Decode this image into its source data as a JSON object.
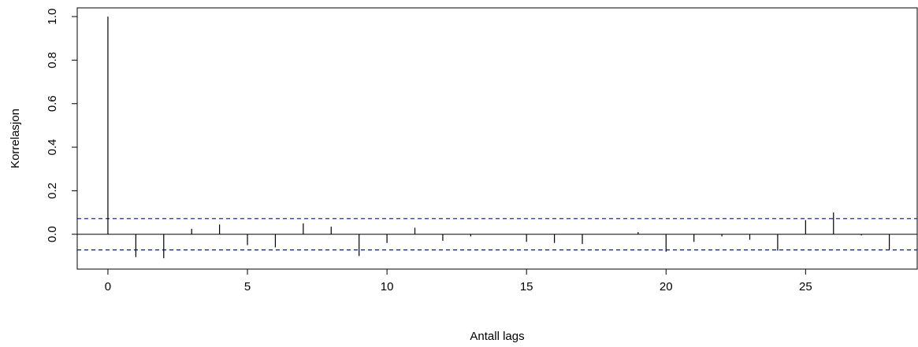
{
  "chart_data": {
    "type": "bar",
    "subtype": "acf-stem",
    "xlabel": "Antall lags",
    "ylabel": "Korrelasjon",
    "xlim": [
      -1.1,
      29
    ],
    "ylim": [
      -0.16,
      1.04
    ],
    "x_ticks": [
      0,
      5,
      10,
      15,
      20,
      25
    ],
    "x_tick_labels": [
      "0",
      "5",
      "10",
      "15",
      "20",
      "25"
    ],
    "y_ticks": [
      0.0,
      0.2,
      0.4,
      0.6,
      0.8,
      1.0
    ],
    "y_tick_labels": [
      "0.0",
      "0.2",
      "0.4",
      "0.6",
      "0.8",
      "1.0"
    ],
    "lags": [
      0,
      1,
      2,
      3,
      4,
      5,
      6,
      7,
      8,
      9,
      10,
      11,
      12,
      13,
      14,
      15,
      16,
      17,
      18,
      19,
      20,
      21,
      22,
      23,
      24,
      25,
      26,
      27,
      28
    ],
    "values": [
      1.0,
      -0.105,
      -0.11,
      0.025,
      0.045,
      -0.05,
      -0.06,
      0.05,
      0.035,
      -0.1,
      -0.04,
      0.03,
      -0.03,
      -0.01,
      0.0,
      -0.035,
      -0.04,
      -0.045,
      0.0,
      0.01,
      -0.08,
      -0.035,
      -0.01,
      -0.025,
      -0.075,
      0.065,
      0.1,
      -0.005,
      -0.07
    ],
    "confidence_bound": 0.072,
    "grid": false,
    "colors": {
      "stem": "#000000",
      "confidence": "#0000ff",
      "frame": "#000000"
    }
  }
}
